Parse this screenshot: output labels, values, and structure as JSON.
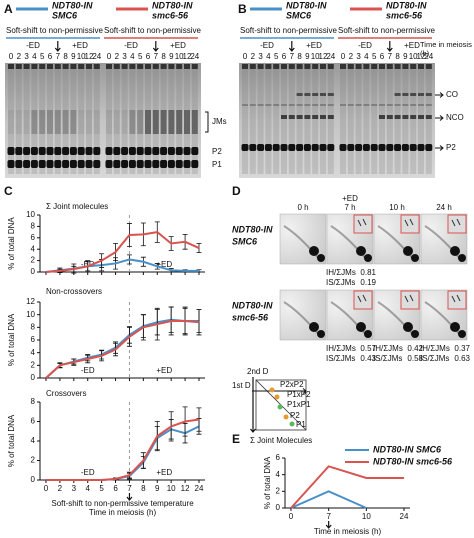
{
  "panel_labels": [
    "A",
    "B",
    "C",
    "D",
    "E"
  ],
  "gels": [
    {
      "legend": [
        {
          "line1": "NDT80-IN",
          "line2": "SMC6",
          "color": "#4a90c8"
        },
        {
          "line1": "NDT80-IN",
          "line2": "smc6-56",
          "color": "#d9534f"
        }
      ],
      "shift_labels": [
        "Soft-shift to non-permissive",
        "Soft-shift to non-permissive"
      ],
      "treatment": [
        "-ED",
        "+ED"
      ],
      "lanes": [
        0,
        2,
        3,
        4,
        5,
        6,
        7,
        8,
        9,
        10,
        12,
        24
      ],
      "band_labels": [
        "JMs",
        "P2",
        "P1"
      ]
    },
    {
      "legend": [
        {
          "line1": "NDT80-IN",
          "line2": "SMC6",
          "color": "#4a90c8"
        },
        {
          "line1": "NDT80-IN",
          "line2": "smc6-56",
          "color": "#d9534f"
        }
      ],
      "shift_labels": [
        "Soft-shift to non-permissive",
        "Soft-shift to non-permissive"
      ],
      "treatment": [
        "-ED",
        "+ED"
      ],
      "lanes": [
        0,
        2,
        3,
        4,
        5,
        6,
        7,
        8,
        9,
        10,
        12,
        24
      ],
      "time_label": "Time in meiosis (h)",
      "band_labels": [
        "CO",
        "NCO",
        "P2"
      ]
    }
  ],
  "gels_2d": {
    "columns": [
      "0 h",
      "7 h",
      "10 h",
      "24 h"
    ],
    "ed_label": "+ED",
    "ih_label": "IH/ΣJMs",
    "is_label": "IS/ΣJMs",
    "rows": [
      {
        "line1": "NDT80-IN",
        "line2": "SMC6",
        "stats": [
          null,
          {
            "ih": 0.81,
            "is": 0.19
          },
          null,
          null
        ]
      },
      {
        "line1": "NDT80-IN",
        "line2": "smc6-56",
        "stats": [
          null,
          {
            "ih": 0.57,
            "is": 0.43
          },
          {
            "ih": 0.42,
            "is": 0.58
          },
          {
            "ih": 0.37,
            "is": 0.63
          }
        ]
      }
    ],
    "diagram": {
      "axes": [
        "1st D",
        "2nd D"
      ],
      "spots": [
        "P2xP2",
        "P1xP2",
        "P1xP1",
        "P2",
        "P1"
      ]
    }
  },
  "chart_data": [
    {
      "type": "line",
      "title": "Σ Joint molecules",
      "y_label": "% of total DNA",
      "ylim": [
        0,
        10
      ],
      "yticks": [
        0,
        2,
        4,
        6,
        8,
        10
      ],
      "annotations": [
        "-ED",
        "+ED"
      ],
      "series": [
        {
          "color": "#4a90c8",
          "values": [
            0,
            0.3,
            0.6,
            1,
            1.2,
            1.5,
            2.2,
            1.8,
            1,
            0.3,
            0.2,
            0.2
          ],
          "errors": [
            0,
            0.4,
            0.8,
            1,
            1,
            1,
            0.8,
            0.8,
            0.5,
            0.3,
            0.2,
            0.2
          ]
        },
        {
          "color": "#d9534f",
          "values": [
            0,
            0.2,
            0.5,
            1,
            2,
            3.5,
            6.5,
            6.6,
            7,
            5,
            5.3,
            4.2
          ],
          "errors": [
            0,
            0.3,
            0.5,
            0.8,
            1.2,
            1.5,
            2,
            2,
            1.8,
            1.2,
            1.3,
            0.8
          ]
        }
      ]
    },
    {
      "type": "line",
      "title": "Non-crossovers",
      "y_label": "% of total DNA",
      "ylim": [
        0,
        12
      ],
      "yticks": [
        0,
        2,
        4,
        6,
        8,
        10,
        12
      ],
      "annotations": [
        "-ED",
        "+ED"
      ],
      "series": [
        {
          "color": "#4a90c8",
          "values": [
            0,
            2,
            2.6,
            3.2,
            3.7,
            4.8,
            6.8,
            8.2,
            8.8,
            9.2,
            9,
            9
          ],
          "errors": [
            0,
            0.3,
            0.4,
            0.5,
            0.7,
            0.9,
            1.3,
            1.8,
            2,
            2,
            2,
            1.8
          ]
        },
        {
          "color": "#d9534f",
          "values": [
            0,
            2,
            2.5,
            3,
            3.5,
            4.5,
            6.5,
            8,
            8.5,
            9,
            9,
            8.8
          ],
          "errors": [
            0,
            0.4,
            0.5,
            0.6,
            0.8,
            1,
            1.5,
            2,
            2.5,
            2.2,
            2.2,
            2
          ]
        }
      ]
    },
    {
      "type": "line",
      "title": "Crossovers",
      "y_label": "% of total DNA",
      "ylim": [
        0,
        8
      ],
      "yticks": [
        0,
        2,
        4,
        6,
        8
      ],
      "annotations": [
        "-ED",
        "+ED"
      ],
      "categories": [
        0,
        2,
        3,
        4,
        5,
        6,
        7,
        8,
        9,
        10,
        12,
        24
      ],
      "note": "Soft-shift to non-permissive temperature",
      "x_label": "Time in meiosis (h)",
      "series": [
        {
          "color": "#4a90c8",
          "values": [
            0,
            0,
            0,
            0,
            0,
            0.1,
            0.4,
            1.8,
            4.3,
            5.2,
            4.8,
            5.5
          ],
          "errors": [
            0,
            0,
            0,
            0,
            0,
            0.1,
            0.3,
            0.6,
            1.2,
            1,
            1,
            0.8
          ]
        },
        {
          "color": "#d9534f",
          "values": [
            0,
            0,
            0,
            0,
            0,
            0.1,
            0.5,
            2,
            4.5,
            5.5,
            6,
            6.2
          ],
          "errors": [
            0,
            0,
            0,
            0,
            0,
            0.1,
            0.3,
            0.8,
            1.5,
            1.5,
            1.5,
            1.2
          ]
        }
      ]
    },
    {
      "type": "line",
      "title": "Σ Joint Molecules",
      "y_label": "% of total DNA",
      "ylim": [
        0,
        6
      ],
      "yticks": [
        0,
        2,
        4,
        6
      ],
      "categories": [
        0,
        7,
        10,
        24
      ],
      "x_label": "Time in meiosis (h)",
      "series": [
        {
          "name": "NDT80-IN SMC6",
          "color": "#4a90c8",
          "values": [
            0,
            2,
            0,
            null
          ]
        },
        {
          "name": "NDT80-IN smc6-56",
          "color": "#d9534f",
          "values": [
            0,
            5,
            3.6,
            3.6
          ]
        }
      ]
    }
  ]
}
